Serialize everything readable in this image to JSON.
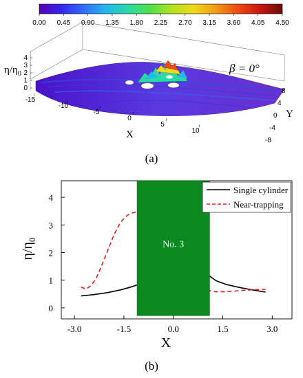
{
  "panel_a": {
    "caption": "(a)",
    "colorbar_ticks": [
      "0.00",
      "0.45",
      "0.90",
      "1.35",
      "1.80",
      "2.25",
      "2.70",
      "3.15",
      "3.60",
      "4.05",
      "4.50"
    ],
    "colorbar_colors": [
      "#5b00b5",
      "#3326f0",
      "#2f6cf6",
      "#24b7ee",
      "#2ad9a6",
      "#4ce14a",
      "#b4e21f",
      "#f0d81b",
      "#f29a14",
      "#ee4a12",
      "#c8160f",
      "#6a0a0a"
    ],
    "annotation": "β = 0°",
    "xlabel": "X",
    "ylabel": "Y",
    "zlabel": "η/η",
    "zlabel_sub": "0",
    "x_ticks": [
      "-15",
      "-10",
      "-5",
      "0",
      "5",
      "10"
    ],
    "y_ticks": [
      "8",
      "4",
      "0",
      "-4",
      "-8"
    ],
    "z_ticks": [
      "0",
      "1",
      "2",
      "3",
      "4"
    ]
  },
  "panel_b": {
    "caption": "(b)",
    "block_label": "No. 3",
    "block_color": "#0a8a1e",
    "colors": {
      "single": "#000000",
      "near": "#e0161a"
    }
  },
  "chart_data": [
    {
      "type": "surface",
      "title": "",
      "annotation": "β = 0°",
      "xlabel": "X",
      "ylabel": "Y",
      "zlabel": "η/η0",
      "xlim": [
        -15,
        12
      ],
      "ylim": [
        -8,
        8
      ],
      "zlim": [
        0,
        4
      ],
      "colorbar": {
        "min": 0.0,
        "max": 4.5,
        "ticks": [
          0.0,
          0.45,
          0.9,
          1.35,
          1.8,
          2.25,
          2.7,
          3.15,
          3.6,
          4.05,
          4.5
        ]
      }
    },
    {
      "type": "line",
      "xlabel": "X",
      "ylabel": "η/η",
      "ylabel_sub": "0",
      "xlim": [
        -3.4,
        3.6
      ],
      "ylim": [
        -0.4,
        4.6
      ],
      "x_ticks": [
        -3.0,
        -1.5,
        0.0,
        1.5,
        3.0
      ],
      "x_tick_labels": [
        "-3.0",
        "-1.5",
        "0.0",
        "1.5",
        "3.0"
      ],
      "y_ticks": [
        0,
        1,
        2,
        3,
        4
      ],
      "y_tick_labels": [
        "0",
        "1",
        "2",
        "3",
        "4"
      ],
      "legend_position": "top-right",
      "shaded_region": {
        "label": "No. 3",
        "x": [
          -1.1,
          1.1
        ]
      },
      "series": [
        {
          "name": "Single cylinder",
          "style": "solid",
          "x": [
            -2.8,
            -2.4,
            -2.0,
            -1.6,
            -1.3,
            -1.1,
            1.1,
            1.3,
            1.6,
            2.0,
            2.4,
            2.8
          ],
          "y": [
            0.43,
            0.48,
            0.55,
            0.65,
            0.75,
            0.83,
            1.15,
            0.98,
            0.85,
            0.74,
            0.65,
            0.57
          ]
        },
        {
          "name": "Near-trapping",
          "style": "dashed",
          "x": [
            -2.8,
            -2.65,
            -2.5,
            -2.35,
            -2.2,
            -2.0,
            -1.8,
            -1.6,
            -1.4,
            -1.2,
            -1.1,
            1.1,
            1.3,
            1.5,
            1.8,
            2.1,
            2.5,
            2.8
          ],
          "y": [
            0.75,
            0.68,
            0.8,
            1.05,
            1.45,
            2.05,
            2.65,
            3.1,
            3.35,
            3.45,
            3.48,
            0.62,
            0.58,
            0.58,
            0.6,
            0.63,
            0.66,
            0.67
          ]
        }
      ]
    }
  ]
}
